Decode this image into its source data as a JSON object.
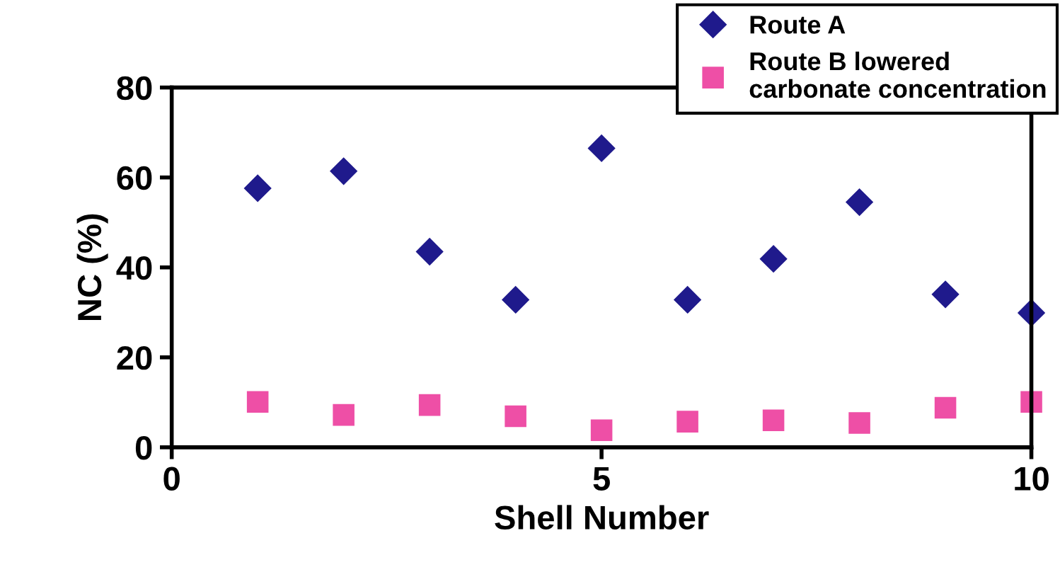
{
  "chart_data": {
    "type": "scatter",
    "xlabel": "Shell Number",
    "ylabel": "NC (%)",
    "x": [
      1,
      2,
      3,
      4,
      5,
      6,
      7,
      8,
      9,
      10
    ],
    "series": [
      {
        "name": "Route A",
        "color": "#1f1a8c",
        "marker": "diamond",
        "values": [
          57.6,
          61.4,
          43.5,
          32.8,
          66.5,
          32.8,
          41.9,
          54.5,
          34,
          29.9
        ]
      },
      {
        "name": "Route B lowered\ncarbonate concentration",
        "color": "#ee4fa6",
        "marker": "square",
        "values": [
          10.1,
          7.2,
          9.4,
          6.9,
          3.8,
          5.7,
          6,
          5.4,
          8.8,
          10.1
        ]
      }
    ],
    "xlim": [
      0,
      10
    ],
    "ylim": [
      0,
      80
    ],
    "xticks": [
      0,
      5,
      10
    ],
    "yticks": [
      0,
      20,
      40,
      60,
      80
    ],
    "legend": "top right",
    "grid": false
  }
}
